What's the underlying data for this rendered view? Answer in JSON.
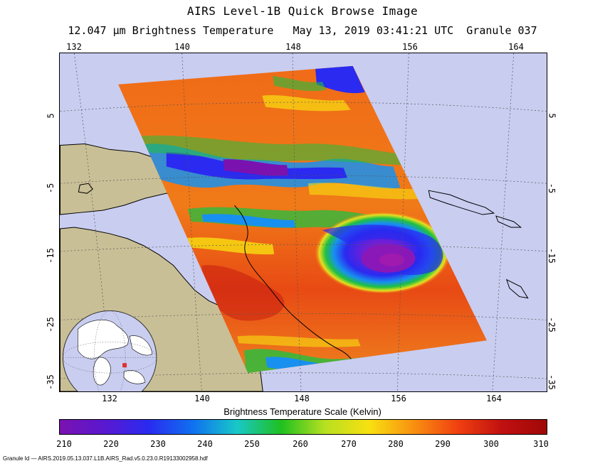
{
  "title": "AIRS Level-1B Quick Browse Image",
  "subtitle": {
    "product": "12.047 µm Brightness Temperature",
    "datetime": "May 13, 2019 03:41:21 UTC",
    "granule": "Granule 037"
  },
  "map": {
    "lon_labels": [
      "132",
      "140",
      "148",
      "156",
      "164"
    ],
    "lat_labels": [
      "5",
      "-5",
      "-15",
      "-25",
      "-35"
    ],
    "colors": {
      "ocean": "#c9cdf0",
      "land": "#c9bf96",
      "grid": "#555555",
      "coast": "#000000"
    }
  },
  "scale": {
    "title": "Brightness Temperature Scale (Kelvin)",
    "labels": [
      "210",
      "220",
      "230",
      "240",
      "250",
      "260",
      "270",
      "280",
      "290",
      "300",
      "310"
    ],
    "colors": [
      "#7a12b0",
      "#5a18d0",
      "#2a2af0",
      "#1070f0",
      "#18c8c8",
      "#20c020",
      "#b8e020",
      "#f8e010",
      "#f89010",
      "#f04010",
      "#c01010",
      "#a00808"
    ]
  },
  "granule_id": "Granule Id — AIRS.2019.05.13.037.L1B.AIRS_Rad.v5.0.23.0.R19133002958.hdf"
}
